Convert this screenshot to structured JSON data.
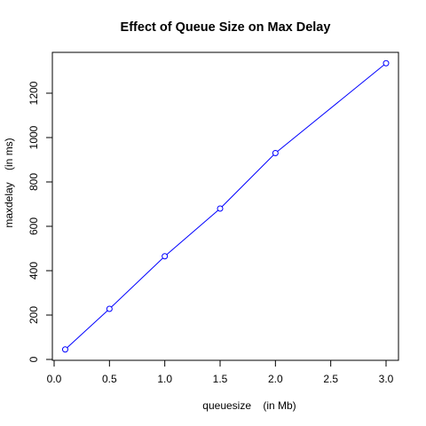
{
  "chart_data": {
    "type": "line",
    "title": "Effect of Queue Size on Max Delay",
    "xlabel": "queuesize    (in Mb)",
    "ylabel": "maxdelay    (in ms)",
    "xlim": [
      0.0,
      3.0
    ],
    "ylim": [
      0,
      1200
    ],
    "x_ticks": [
      "0.0",
      "0.5",
      "1.0",
      "1.5",
      "2.0",
      "2.5",
      "3.0"
    ],
    "y_ticks": [
      "0",
      "200",
      "400",
      "600",
      "800",
      "1000",
      "1200"
    ],
    "grid": false,
    "series": [
      {
        "color": "#0000ff",
        "marker": "open-circle",
        "x": [
          0.1,
          0.5,
          1.0,
          1.5,
          2.0,
          3.0
        ],
        "y": [
          45,
          228,
          465,
          680,
          930,
          1335
        ]
      }
    ]
  }
}
